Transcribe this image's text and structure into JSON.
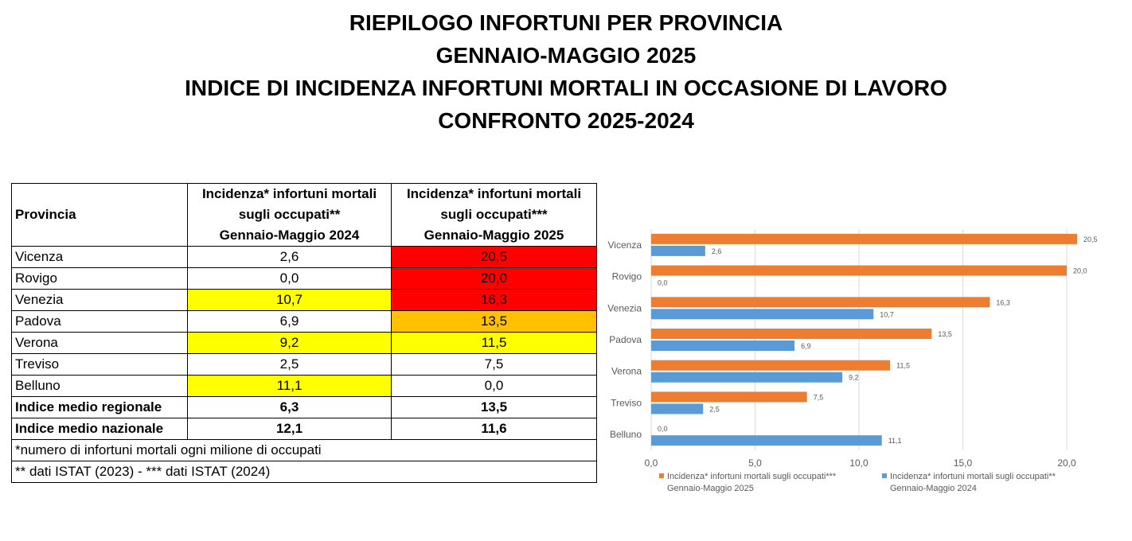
{
  "titles": [
    "RIEPILOGO INFORTUNI PER PROVINCIA",
    "GENNAIO-MAGGIO 2025",
    "INDICE DI INCIDENZA INFORTUNI MORTALI IN OCCASIONE DI LAVORO",
    "CONFRONTO 2025-2024"
  ],
  "table": {
    "header_provincia": "Provincia",
    "header_2024": [
      "Incidenza* infortuni mortali",
      "sugli occupati**",
      "Gennaio-Maggio 2024"
    ],
    "header_2025": [
      "Incidenza* infortuni mortali",
      "sugli occupati***",
      "Gennaio-Maggio 2025"
    ],
    "rows": [
      {
        "provincia": "Vicenza",
        "v2024": "2,6",
        "v2025": "20,5",
        "bg2024": "#ffffff",
        "bg2025": "#ff0000"
      },
      {
        "provincia": "Rovigo",
        "v2024": "0,0",
        "v2025": "20,0",
        "bg2024": "#ffffff",
        "bg2025": "#ff0000"
      },
      {
        "provincia": "Venezia",
        "v2024": "10,7",
        "v2025": "16,3",
        "bg2024": "#ffff00",
        "bg2025": "#ff0000"
      },
      {
        "provincia": "Padova",
        "v2024": "6,9",
        "v2025": "13,5",
        "bg2024": "#ffffff",
        "bg2025": "#ffc000"
      },
      {
        "provincia": "Verona",
        "v2024": "9,2",
        "v2025": "11,5",
        "bg2024": "#ffff00",
        "bg2025": "#ffff00"
      },
      {
        "provincia": "Treviso",
        "v2024": "2,5",
        "v2025": "7,5",
        "bg2024": "#ffffff",
        "bg2025": "#ffffff"
      },
      {
        "provincia": "Belluno",
        "v2024": "11,1",
        "v2025": "0,0",
        "bg2024": "#ffff00",
        "bg2025": "#ffffff"
      }
    ],
    "regional": {
      "label": "Indice medio regionale",
      "v2024": "6,3",
      "v2025": "13,5"
    },
    "national": {
      "label": "Indice medio nazionale",
      "v2024": "12,1",
      "v2025": "11,6"
    },
    "note1": "*numero di infortuni mortali ogni milione di occupati",
    "note2": "** dati ISTAT (2023) - *** dati ISTAT (2024)"
  },
  "chart_data": {
    "type": "bar",
    "orientation": "horizontal",
    "categories": [
      "Vicenza",
      "Rovigo",
      "Venezia",
      "Padova",
      "Verona",
      "Treviso",
      "Belluno"
    ],
    "series": [
      {
        "name": "Incidenza* infortuni mortali  sugli occupati*** Gennaio-Maggio 2025",
        "legend_lines": [
          "Incidenza* infortuni mortali  sugli occupati***",
          "Gennaio-Maggio 2025"
        ],
        "color": "#ed7d31",
        "values": [
          20.5,
          20.0,
          16.3,
          13.5,
          11.5,
          7.5,
          0.0
        ],
        "labels": [
          "20,5",
          "20,0",
          "16,3",
          "13,5",
          "11,5",
          "7,5",
          "0,0"
        ]
      },
      {
        "name": "Incidenza* infortuni mortali  sugli occupati** Gennaio-Maggio 2024",
        "legend_lines": [
          "Incidenza* infortuni mortali  sugli occupati**",
          "Gennaio-Maggio 2024"
        ],
        "color": "#5b9bd5",
        "values": [
          2.6,
          0.0,
          10.7,
          6.9,
          9.2,
          2.5,
          11.1
        ],
        "labels": [
          "2,6",
          "0,0",
          "10,7",
          "6,9",
          "9,2",
          "2,5",
          "11,1"
        ]
      }
    ],
    "xlim": [
      0,
      20
    ],
    "xticks": [
      0,
      5,
      10,
      15,
      20
    ],
    "xtick_labels": [
      "0,0",
      "5,0",
      "10,0",
      "15,0",
      "20,0"
    ],
    "grid": true,
    "legend_position": "bottom"
  }
}
